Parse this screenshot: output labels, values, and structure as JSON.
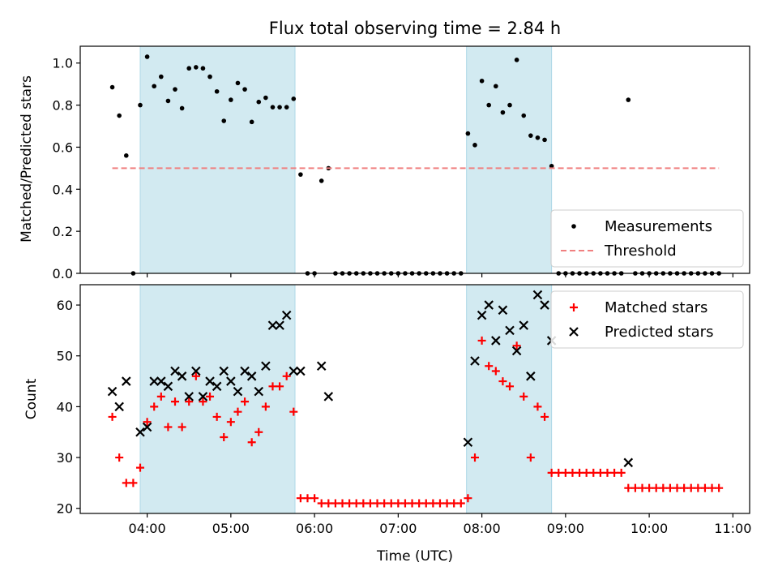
{
  "chart_data": {
    "title": "Flux total observing time = 2.84 h",
    "xlabel": "Time (UTC)",
    "x_ticks": [
      "04:00",
      "05:00",
      "06:00",
      "07:00",
      "08:00",
      "09:00",
      "10:00",
      "11:00"
    ],
    "shaded_intervals": [
      [
        "03:55",
        "05:46"
      ],
      [
        "07:49",
        "08:50"
      ]
    ],
    "shade_color": "#add8e6",
    "panels": [
      {
        "type": "scatter",
        "ylabel": "Matched/Predicted stars",
        "ylim": [
          0,
          1.08
        ],
        "y_ticks": [
          0.0,
          0.2,
          0.4,
          0.6,
          0.8,
          1.0
        ],
        "legend_position": "bottom-right",
        "series": [
          {
            "name": "Measurements",
            "marker": "dot",
            "color": "#000000",
            "points": [
              [
                "03:35",
                0.885
              ],
              [
                "03:40",
                0.75
              ],
              [
                "03:45",
                0.56
              ],
              [
                "03:50",
                0.0
              ],
              [
                "03:55",
                0.8
              ],
              [
                "04:00",
                1.03
              ],
              [
                "04:05",
                0.89
              ],
              [
                "04:10",
                0.935
              ],
              [
                "04:15",
                0.82
              ],
              [
                "04:20",
                0.875
              ],
              [
                "04:25",
                0.785
              ],
              [
                "04:30",
                0.975
              ],
              [
                "04:35",
                0.98
              ],
              [
                "04:40",
                0.975
              ],
              [
                "04:45",
                0.935
              ],
              [
                "04:50",
                0.865
              ],
              [
                "04:55",
                0.725
              ],
              [
                "05:00",
                0.825
              ],
              [
                "05:05",
                0.905
              ],
              [
                "05:10",
                0.875
              ],
              [
                "05:15",
                0.72
              ],
              [
                "05:20",
                0.815
              ],
              [
                "05:25",
                0.835
              ],
              [
                "05:30",
                0.79
              ],
              [
                "05:35",
                0.79
              ],
              [
                "05:40",
                0.79
              ],
              [
                "05:45",
                0.83
              ],
              [
                "05:50",
                0.47
              ],
              [
                "05:55",
                0.0
              ],
              [
                "06:00",
                0.0
              ],
              [
                "06:05",
                0.44
              ],
              [
                "06:10",
                0.5
              ],
              [
                "06:15",
                0.0
              ],
              [
                "06:20",
                0.0
              ],
              [
                "06:25",
                0.0
              ],
              [
                "06:30",
                0.0
              ],
              [
                "06:35",
                0.0
              ],
              [
                "06:40",
                0.0
              ],
              [
                "06:45",
                0.0
              ],
              [
                "06:50",
                0.0
              ],
              [
                "06:55",
                0.0
              ],
              [
                "07:00",
                0.0
              ],
              [
                "07:05",
                0.0
              ],
              [
                "07:10",
                0.0
              ],
              [
                "07:15",
                0.0
              ],
              [
                "07:20",
                0.0
              ],
              [
                "07:25",
                0.0
              ],
              [
                "07:30",
                0.0
              ],
              [
                "07:35",
                0.0
              ],
              [
                "07:40",
                0.0
              ],
              [
                "07:45",
                0.0
              ],
              [
                "07:50",
                0.665
              ],
              [
                "07:55",
                0.61
              ],
              [
                "08:00",
                0.915
              ],
              [
                "08:05",
                0.8
              ],
              [
                "08:10",
                0.89
              ],
              [
                "08:15",
                0.765
              ],
              [
                "08:20",
                0.8
              ],
              [
                "08:25",
                1.015
              ],
              [
                "08:30",
                0.75
              ],
              [
                "08:35",
                0.655
              ],
              [
                "08:40",
                0.645
              ],
              [
                "08:45",
                0.635
              ],
              [
                "08:50",
                0.51
              ],
              [
                "08:55",
                0.0
              ],
              [
                "09:00",
                0.0
              ],
              [
                "09:05",
                0.0
              ],
              [
                "09:10",
                0.0
              ],
              [
                "09:15",
                0.0
              ],
              [
                "09:20",
                0.0
              ],
              [
                "09:25",
                0.0
              ],
              [
                "09:30",
                0.0
              ],
              [
                "09:35",
                0.0
              ],
              [
                "09:40",
                0.0
              ],
              [
                "09:45",
                0.825
              ],
              [
                "09:50",
                0.0
              ],
              [
                "09:55",
                0.0
              ],
              [
                "10:00",
                0.0
              ],
              [
                "10:05",
                0.0
              ],
              [
                "10:10",
                0.0
              ],
              [
                "10:15",
                0.0
              ],
              [
                "10:20",
                0.0
              ],
              [
                "10:25",
                0.0
              ],
              [
                "10:30",
                0.0
              ],
              [
                "10:35",
                0.0
              ],
              [
                "10:40",
                0.0
              ],
              [
                "10:45",
                0.0
              ],
              [
                "10:50",
                0.0
              ]
            ]
          },
          {
            "name": "Threshold",
            "type": "line",
            "style": "dashed",
            "color": "#f08080",
            "points": [
              [
                "03:35",
                0.5
              ],
              [
                "10:50",
                0.5
              ]
            ]
          }
        ]
      },
      {
        "type": "scatter",
        "ylabel": "Count",
        "ylim": [
          19,
          64
        ],
        "y_ticks": [
          20,
          30,
          40,
          50,
          60
        ],
        "legend_position": "top-right",
        "series": [
          {
            "name": "Matched stars",
            "marker": "plus",
            "color": "#ff0000",
            "points": [
              [
                "03:35",
                38
              ],
              [
                "03:40",
                30
              ],
              [
                "03:45",
                25
              ],
              [
                "03:50",
                25
              ],
              [
                "03:55",
                28
              ],
              [
                "04:00",
                37
              ],
              [
                "04:05",
                40
              ],
              [
                "04:10",
                42
              ],
              [
                "04:15",
                36
              ],
              [
                "04:20",
                41
              ],
              [
                "04:25",
                36
              ],
              [
                "04:30",
                41
              ],
              [
                "04:35",
                46
              ],
              [
                "04:40",
                41
              ],
              [
                "04:45",
                42
              ],
              [
                "04:50",
                38
              ],
              [
                "04:55",
                34
              ],
              [
                "05:00",
                37
              ],
              [
                "05:05",
                39
              ],
              [
                "05:10",
                41
              ],
              [
                "05:15",
                33
              ],
              [
                "05:20",
                35
              ],
              [
                "05:25",
                40
              ],
              [
                "05:30",
                44
              ],
              [
                "05:35",
                44
              ],
              [
                "05:40",
                46
              ],
              [
                "05:45",
                39
              ],
              [
                "05:50",
                22
              ],
              [
                "05:55",
                22
              ],
              [
                "06:00",
                22
              ],
              [
                "06:05",
                21
              ],
              [
                "06:10",
                21
              ],
              [
                "06:15",
                21
              ],
              [
                "06:20",
                21
              ],
              [
                "06:25",
                21
              ],
              [
                "06:30",
                21
              ],
              [
                "06:35",
                21
              ],
              [
                "06:40",
                21
              ],
              [
                "06:45",
                21
              ],
              [
                "06:50",
                21
              ],
              [
                "06:55",
                21
              ],
              [
                "07:00",
                21
              ],
              [
                "07:05",
                21
              ],
              [
                "07:10",
                21
              ],
              [
                "07:15",
                21
              ],
              [
                "07:20",
                21
              ],
              [
                "07:25",
                21
              ],
              [
                "07:30",
                21
              ],
              [
                "07:35",
                21
              ],
              [
                "07:40",
                21
              ],
              [
                "07:45",
                21
              ],
              [
                "07:50",
                22
              ],
              [
                "07:55",
                30
              ],
              [
                "08:00",
                53
              ],
              [
                "08:05",
                48
              ],
              [
                "08:10",
                47
              ],
              [
                "08:15",
                45
              ],
              [
                "08:20",
                44
              ],
              [
                "08:25",
                52
              ],
              [
                "08:30",
                42
              ],
              [
                "08:35",
                30
              ],
              [
                "08:40",
                40
              ],
              [
                "08:45",
                38
              ],
              [
                "08:50",
                27
              ],
              [
                "08:55",
                27
              ],
              [
                "09:00",
                27
              ],
              [
                "09:05",
                27
              ],
              [
                "09:10",
                27
              ],
              [
                "09:15",
                27
              ],
              [
                "09:20",
                27
              ],
              [
                "09:25",
                27
              ],
              [
                "09:30",
                27
              ],
              [
                "09:35",
                27
              ],
              [
                "09:40",
                27
              ],
              [
                "09:45",
                24
              ],
              [
                "09:50",
                24
              ],
              [
                "09:55",
                24
              ],
              [
                "10:00",
                24
              ],
              [
                "10:05",
                24
              ],
              [
                "10:10",
                24
              ],
              [
                "10:15",
                24
              ],
              [
                "10:20",
                24
              ],
              [
                "10:25",
                24
              ],
              [
                "10:30",
                24
              ],
              [
                "10:35",
                24
              ],
              [
                "10:40",
                24
              ],
              [
                "10:45",
                24
              ],
              [
                "10:50",
                24
              ]
            ]
          },
          {
            "name": "Predicted stars",
            "marker": "x",
            "color": "#000000",
            "points": [
              [
                "03:35",
                43
              ],
              [
                "03:40",
                40
              ],
              [
                "03:45",
                45
              ],
              [
                "03:55",
                35
              ],
              [
                "04:00",
                36
              ],
              [
                "04:05",
                45
              ],
              [
                "04:10",
                45
              ],
              [
                "04:15",
                44
              ],
              [
                "04:20",
                47
              ],
              [
                "04:25",
                46
              ],
              [
                "04:30",
                42
              ],
              [
                "04:35",
                47
              ],
              [
                "04:40",
                42
              ],
              [
                "04:45",
                45
              ],
              [
                "04:50",
                44
              ],
              [
                "04:55",
                47
              ],
              [
                "05:00",
                45
              ],
              [
                "05:05",
                43
              ],
              [
                "05:10",
                47
              ],
              [
                "05:15",
                46
              ],
              [
                "05:20",
                43
              ],
              [
                "05:25",
                48
              ],
              [
                "05:30",
                56
              ],
              [
                "05:35",
                56
              ],
              [
                "05:40",
                58
              ],
              [
                "05:45",
                47
              ],
              [
                "05:50",
                47
              ],
              [
                "06:05",
                48
              ],
              [
                "06:10",
                42
              ],
              [
                "07:50",
                33
              ],
              [
                "07:55",
                49
              ],
              [
                "08:00",
                58
              ],
              [
                "08:05",
                60
              ],
              [
                "08:10",
                53
              ],
              [
                "08:15",
                59
              ],
              [
                "08:20",
                55
              ],
              [
                "08:25",
                51
              ],
              [
                "08:30",
                56
              ],
              [
                "08:35",
                46
              ],
              [
                "08:40",
                62
              ],
              [
                "08:45",
                60
              ],
              [
                "08:50",
                53
              ],
              [
                "09:45",
                29
              ]
            ]
          }
        ]
      }
    ]
  }
}
